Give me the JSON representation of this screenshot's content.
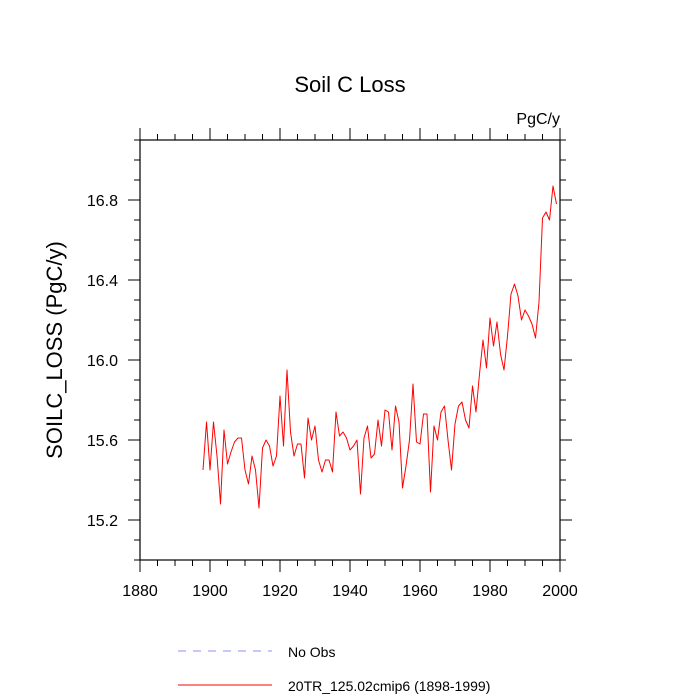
{
  "chart_data": {
    "type": "line",
    "title": "Soil C Loss",
    "units": "PgC/y",
    "ylabel": "SOILC_LOSS  (PgC/y)",
    "xlabel": "",
    "xlim": [
      1880,
      2000
    ],
    "ylim": [
      15.0,
      17.1
    ],
    "xticks": [
      1880,
      1900,
      1920,
      1940,
      1960,
      1980,
      2000
    ],
    "xtick_labels": [
      "1880",
      "1900",
      "1920",
      "1940",
      "1960",
      "1980",
      "2000"
    ],
    "xminor_step": 5,
    "yticks": [
      15.2,
      15.6,
      16.0,
      16.4,
      16.8
    ],
    "ytick_labels": [
      "15.2",
      "15.6",
      "16.0",
      "16.4",
      "16.8"
    ],
    "yminor_step": 0.1,
    "grid": false,
    "legend_position": "bottom",
    "legend": [
      {
        "label": "No Obs",
        "color": "#8f8fff",
        "style": "dashed"
      },
      {
        "label": "20TR_125.02cmip6 (1898-1999)",
        "color": "#ff0000",
        "style": "solid"
      }
    ],
    "series": [
      {
        "name": "20TR_125.02cmip6 (1898-1999)",
        "color": "#ff0000",
        "x": [
          1898,
          1899,
          1900,
          1901,
          1902,
          1903,
          1904,
          1905,
          1906,
          1907,
          1908,
          1909,
          1910,
          1911,
          1912,
          1913,
          1914,
          1915,
          1916,
          1917,
          1918,
          1919,
          1920,
          1921,
          1922,
          1923,
          1924,
          1925,
          1926,
          1927,
          1928,
          1929,
          1930,
          1931,
          1932,
          1933,
          1934,
          1935,
          1936,
          1937,
          1938,
          1939,
          1940,
          1941,
          1942,
          1943,
          1944,
          1945,
          1946,
          1947,
          1948,
          1949,
          1950,
          1951,
          1952,
          1953,
          1954,
          1955,
          1956,
          1957,
          1958,
          1959,
          1960,
          1961,
          1962,
          1963,
          1964,
          1965,
          1966,
          1967,
          1968,
          1969,
          1970,
          1971,
          1972,
          1973,
          1974,
          1975,
          1976,
          1977,
          1978,
          1979,
          1980,
          1981,
          1982,
          1983,
          1984,
          1985,
          1986,
          1987,
          1988,
          1989,
          1990,
          1991,
          1992,
          1993,
          1994,
          1995,
          1996,
          1997,
          1998,
          1999
        ],
        "values": [
          15.45,
          15.69,
          15.45,
          15.69,
          15.52,
          15.28,
          15.65,
          15.48,
          15.54,
          15.59,
          15.61,
          15.61,
          15.45,
          15.38,
          15.52,
          15.45,
          15.26,
          15.56,
          15.6,
          15.57,
          15.47,
          15.52,
          15.82,
          15.57,
          15.95,
          15.64,
          15.52,
          15.58,
          15.58,
          15.41,
          15.71,
          15.6,
          15.67,
          15.5,
          15.44,
          15.5,
          15.5,
          15.44,
          15.74,
          15.62,
          15.64,
          15.61,
          15.55,
          15.57,
          15.6,
          15.33,
          15.61,
          15.67,
          15.51,
          15.53,
          15.7,
          15.57,
          15.75,
          15.74,
          15.55,
          15.77,
          15.69,
          15.36,
          15.47,
          15.6,
          15.88,
          15.59,
          15.58,
          15.73,
          15.73,
          15.34,
          15.67,
          15.6,
          15.74,
          15.77,
          15.6,
          15.45,
          15.68,
          15.77,
          15.79,
          15.7,
          15.66,
          15.87,
          15.74,
          15.93,
          16.1,
          15.96,
          16.21,
          16.07,
          16.19,
          16.03,
          15.95,
          16.12,
          16.33,
          16.38,
          16.32,
          16.2,
          16.25,
          16.22,
          16.18,
          16.11,
          16.29,
          16.71,
          16.74,
          16.7,
          16.87,
          16.78
        ]
      }
    ]
  }
}
